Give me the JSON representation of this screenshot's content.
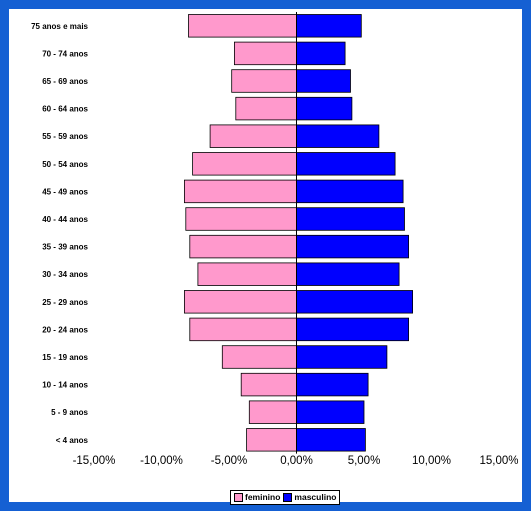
{
  "chart_data": {
    "type": "bar",
    "orientation": "horizontal",
    "categories": [
      "75 anos e mais",
      "70 - 74 anos",
      "65 - 69 anos",
      "60 - 64 anos",
      "55 - 59 anos",
      "50 - 54 anos",
      "45 - 49 anos",
      "40 - 44 anos",
      "35 - 39 anos",
      "30 - 34 anos",
      "25 - 29 anos",
      "20 - 24 anos",
      "15 - 19 anos",
      "10 - 14 anos",
      "5 - 9 anos",
      "< 4 anos"
    ],
    "series": [
      {
        "name": "feminino",
        "color": "#ff99cc",
        "values": [
          -8.0,
          -4.6,
          -4.8,
          -4.5,
          -6.4,
          -7.7,
          -8.3,
          -8.2,
          -7.9,
          -7.3,
          -8.3,
          -7.9,
          -5.5,
          -4.1,
          -3.5,
          -3.7
        ]
      },
      {
        "name": "masculino",
        "color": "#0000ff",
        "values": [
          4.8,
          3.6,
          4.0,
          4.1,
          6.1,
          7.3,
          7.9,
          8.0,
          8.3,
          7.6,
          8.6,
          8.3,
          6.7,
          5.3,
          5.0,
          5.1
        ]
      }
    ],
    "xticks": [
      "-15,00%",
      "-10,00%",
      "-5,00%",
      "0,00%",
      "5,00%",
      "10,00%",
      "15,00%"
    ],
    "xlim": [
      -15,
      15
    ],
    "legend": "bottom",
    "grid": false
  }
}
